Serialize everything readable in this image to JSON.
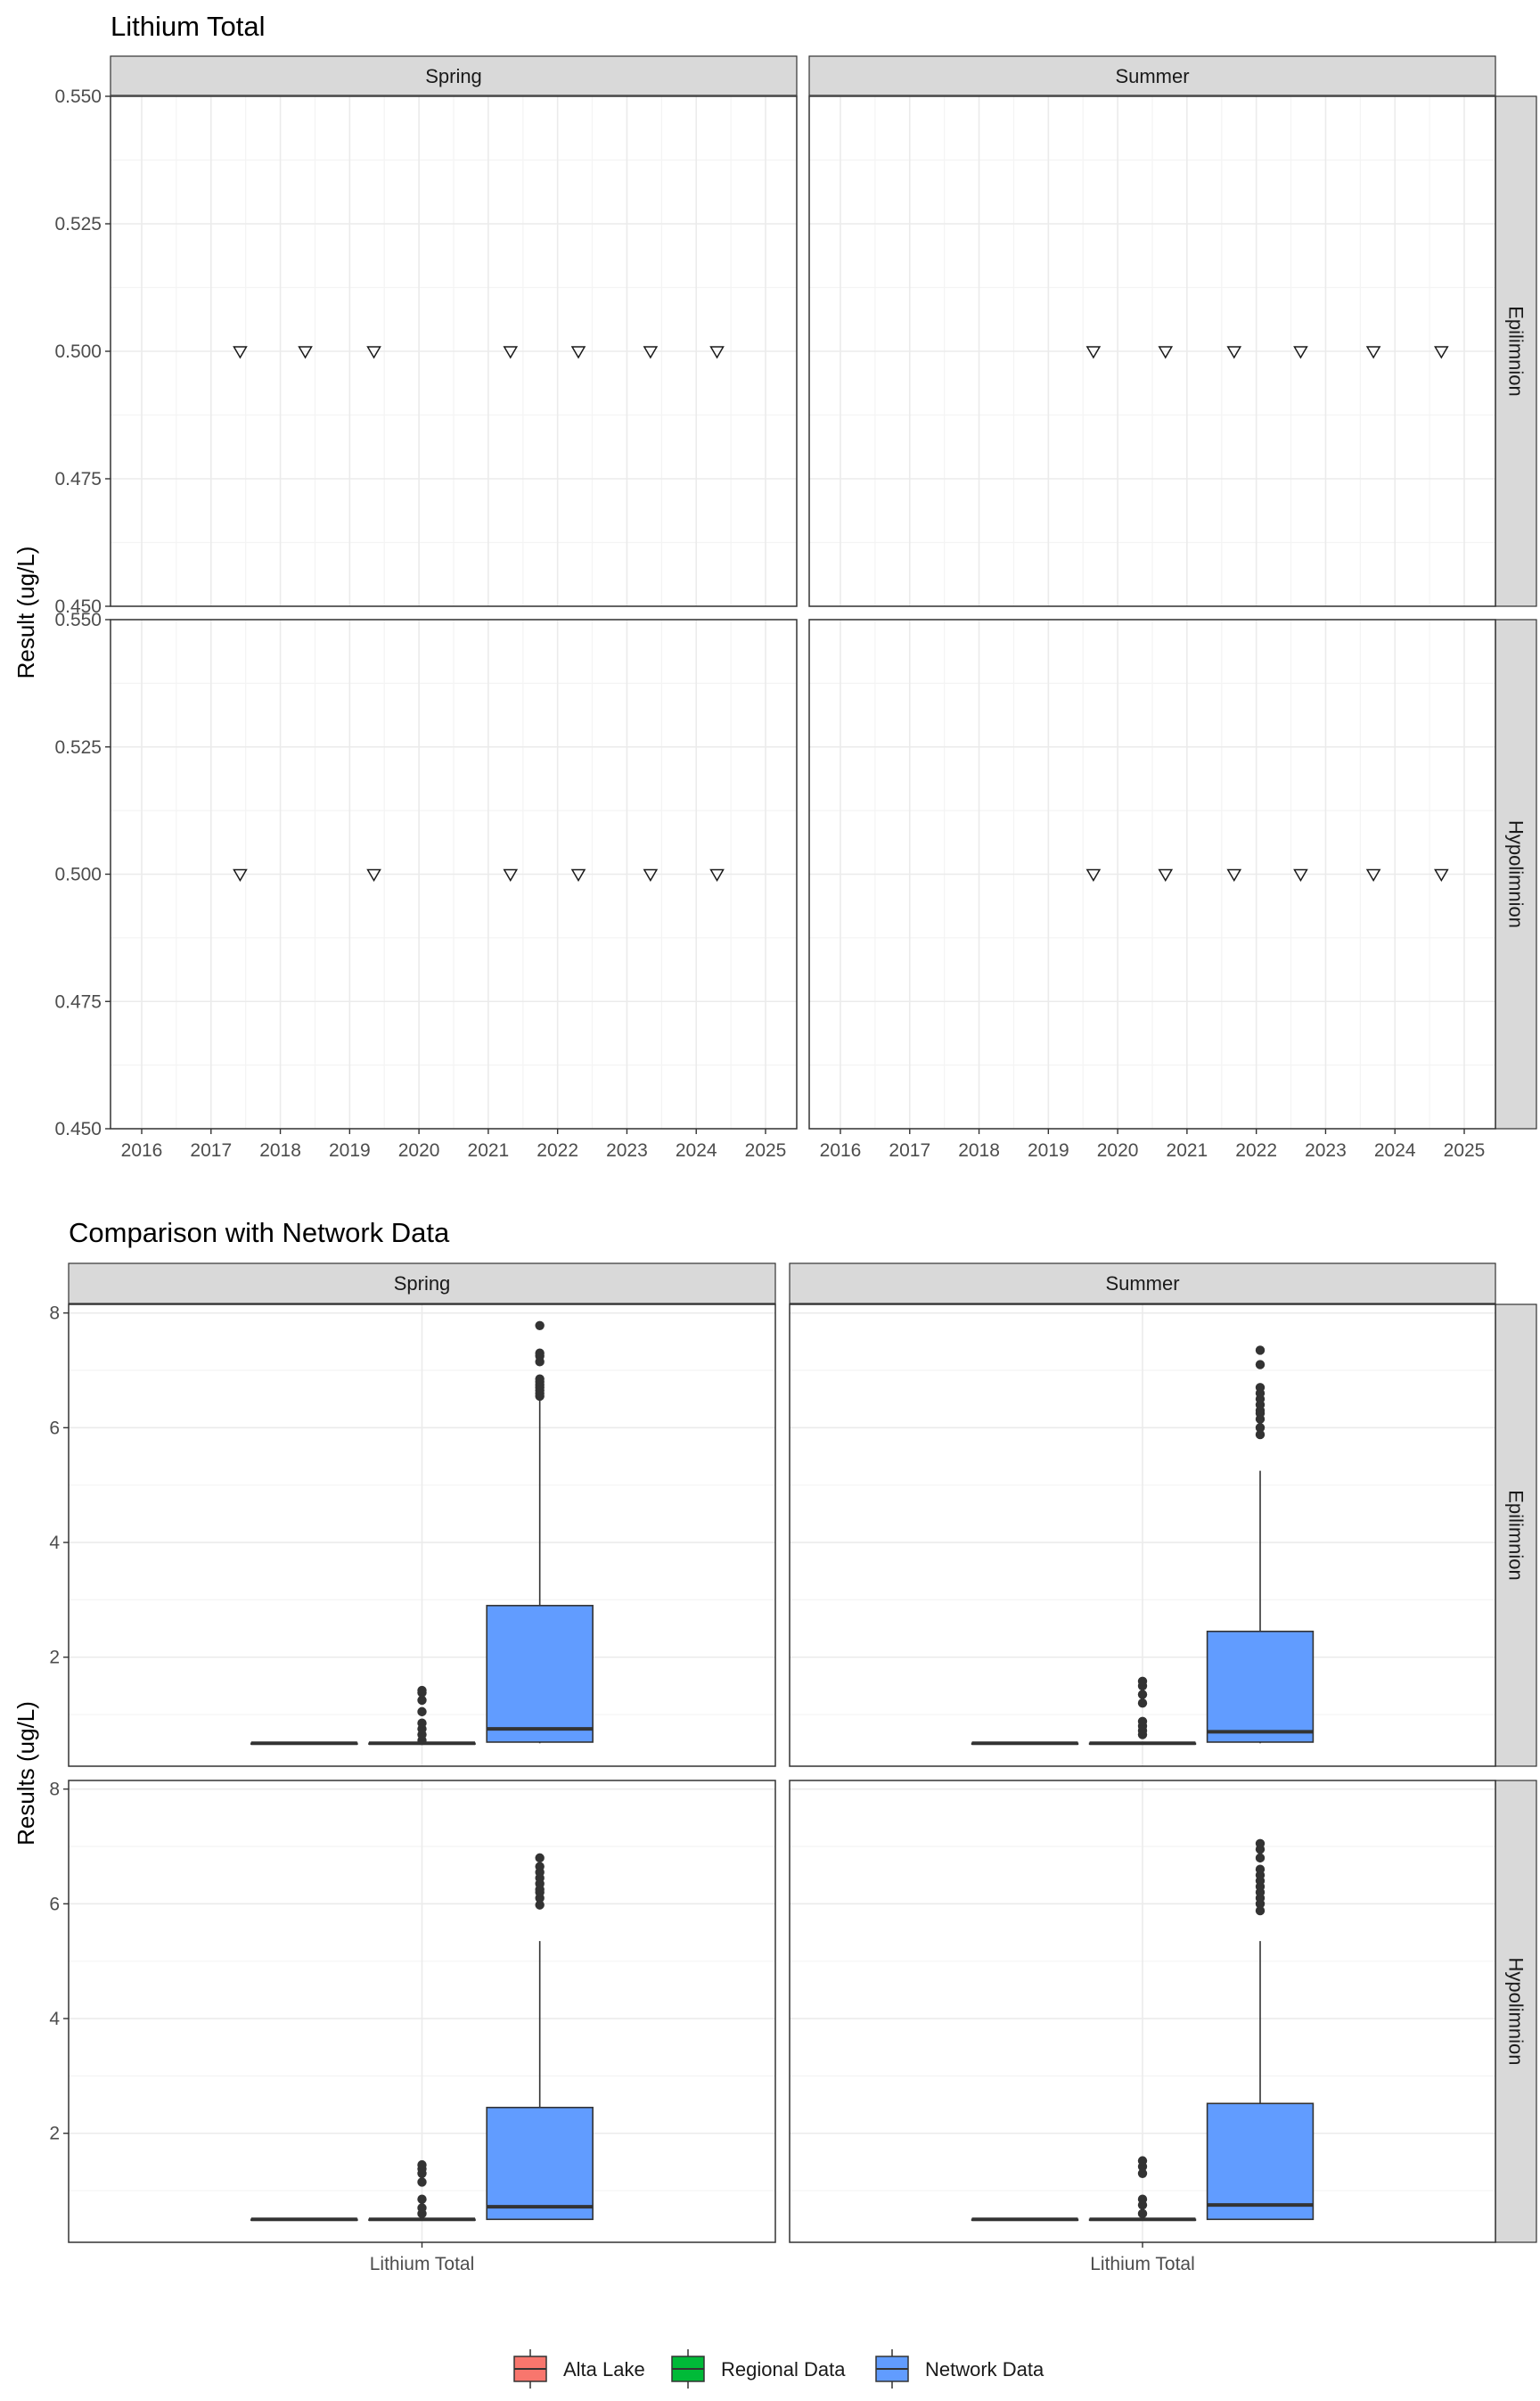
{
  "chart_data": [
    {
      "type": "scatter",
      "title": "Lithium Total",
      "ylabel": "Result (ug/L)",
      "xlabel": "",
      "facet_cols": [
        "Spring",
        "Summer"
      ],
      "facet_rows": [
        "Epilimnion",
        "Hypolimnion"
      ],
      "xlim": [
        2015.55,
        2025.45
      ],
      "ylim": [
        0.45,
        0.55
      ],
      "x_ticks": [
        2016,
        2017,
        2018,
        2019,
        2020,
        2021,
        2022,
        2023,
        2024,
        2025
      ],
      "x_tick_labels": [
        "2016",
        "2017",
        "2018",
        "2019",
        "2020",
        "2021",
        "2022",
        "2023",
        "2024",
        "2025"
      ],
      "y_ticks": [
        0.45,
        0.475,
        0.5,
        0.525,
        0.55
      ],
      "y_tick_labels": [
        "0.450",
        "0.475",
        "0.500",
        "0.525",
        "0.550"
      ],
      "marker": "open-down-triangle",
      "grid": true,
      "panels": [
        {
          "col": "Spring",
          "row": "Epilimnion",
          "x": [
            2017.42,
            2018.36,
            2019.35,
            2021.32,
            2022.3,
            2023.34,
            2024.3
          ],
          "y": [
            0.5,
            0.5,
            0.5,
            0.5,
            0.5,
            0.5,
            0.5
          ]
        },
        {
          "col": "Summer",
          "row": "Epilimnion",
          "x": [
            2019.65,
            2020.69,
            2021.68,
            2022.64,
            2023.69,
            2024.67
          ],
          "y": [
            0.5,
            0.5,
            0.5,
            0.5,
            0.5,
            0.5
          ]
        },
        {
          "col": "Spring",
          "row": "Hypolimnion",
          "x": [
            2017.42,
            2019.35,
            2021.32,
            2022.3,
            2023.34,
            2024.3
          ],
          "y": [
            0.5,
            0.5,
            0.5,
            0.5,
            0.5,
            0.5
          ]
        },
        {
          "col": "Summer",
          "row": "Hypolimnion",
          "x": [
            2019.65,
            2020.69,
            2021.68,
            2022.64,
            2023.69,
            2024.67
          ],
          "y": [
            0.5,
            0.5,
            0.5,
            0.5,
            0.5,
            0.5
          ]
        }
      ]
    },
    {
      "type": "box",
      "title": "Comparison with Network Data",
      "ylabel": "Results (ug/L)",
      "xlabel": "",
      "facet_cols": [
        "Spring",
        "Summer"
      ],
      "facet_rows": [
        "Epilimnion",
        "Hypolimnion"
      ],
      "categories": [
        "Lithium Total"
      ],
      "ylim": [
        0.1,
        8.15
      ],
      "y_ticks": [
        2,
        4,
        6,
        8
      ],
      "y_tick_labels": [
        "2",
        "4",
        "6",
        "8"
      ],
      "grid": true,
      "legend": {
        "position": "bottom",
        "entries": [
          "Alta Lake",
          "Regional Data",
          "Network Data"
        ]
      },
      "colors": {
        "Alta Lake": "#F8766D",
        "Regional Data": "#00BA38",
        "Network Data": "#619CFF"
      },
      "panels": [
        {
          "col": "Spring",
          "row": "Epilimnion",
          "series": [
            {
              "name": "Alta Lake",
              "q1": 0.5,
              "median": 0.5,
              "q3": 0.5,
              "whisker_low": 0.5,
              "whisker_high": 0.5,
              "outliers": []
            },
            {
              "name": "Regional Data",
              "q1": 0.5,
              "median": 0.5,
              "q3": 0.5,
              "whisker_low": 0.5,
              "whisker_high": 0.5,
              "outliers": [
                0.55,
                0.65,
                0.75,
                0.85,
                1.05,
                1.25,
                1.38,
                1.42
              ]
            },
            {
              "name": "Network Data",
              "q1": 0.52,
              "median": 0.75,
              "q3": 2.9,
              "whisker_low": 0.5,
              "whisker_high": 6.5,
              "outliers": [
                6.55,
                6.6,
                6.65,
                6.7,
                6.75,
                6.8,
                6.85,
                7.15,
                7.25,
                7.3,
                7.78
              ]
            }
          ]
        },
        {
          "col": "Summer",
          "row": "Epilimnion",
          "series": [
            {
              "name": "Alta Lake",
              "q1": 0.5,
              "median": 0.5,
              "q3": 0.5,
              "whisker_low": 0.5,
              "whisker_high": 0.5,
              "outliers": []
            },
            {
              "name": "Regional Data",
              "q1": 0.5,
              "median": 0.5,
              "q3": 0.5,
              "whisker_low": 0.5,
              "whisker_high": 0.5,
              "outliers": [
                0.65,
                0.72,
                0.8,
                0.88,
                1.2,
                1.35,
                1.5,
                1.58
              ]
            },
            {
              "name": "Network Data",
              "q1": 0.52,
              "median": 0.7,
              "q3": 2.45,
              "whisker_low": 0.5,
              "whisker_high": 5.25,
              "outliers": [
                5.88,
                6.0,
                6.15,
                6.25,
                6.3,
                6.4,
                6.5,
                6.6,
                6.7,
                7.1,
                7.35
              ]
            }
          ]
        },
        {
          "col": "Spring",
          "row": "Hypolimnion",
          "series": [
            {
              "name": "Alta Lake",
              "q1": 0.5,
              "median": 0.5,
              "q3": 0.5,
              "whisker_low": 0.5,
              "whisker_high": 0.5,
              "outliers": []
            },
            {
              "name": "Regional Data",
              "q1": 0.5,
              "median": 0.5,
              "q3": 0.5,
              "whisker_low": 0.5,
              "whisker_high": 0.5,
              "outliers": [
                0.6,
                0.7,
                0.85,
                1.15,
                1.3,
                1.38,
                1.45
              ]
            },
            {
              "name": "Network Data",
              "q1": 0.5,
              "median": 0.72,
              "q3": 2.45,
              "whisker_low": 0.5,
              "whisker_high": 5.35,
              "outliers": [
                5.98,
                6.1,
                6.2,
                6.25,
                6.35,
                6.45,
                6.55,
                6.65,
                6.8
              ]
            }
          ]
        },
        {
          "col": "Summer",
          "row": "Hypolimnion",
          "series": [
            {
              "name": "Alta Lake",
              "q1": 0.5,
              "median": 0.5,
              "q3": 0.5,
              "whisker_low": 0.5,
              "whisker_high": 0.5,
              "outliers": []
            },
            {
              "name": "Regional Data",
              "q1": 0.5,
              "median": 0.5,
              "q3": 0.5,
              "whisker_low": 0.5,
              "whisker_high": 0.5,
              "outliers": [
                0.6,
                0.75,
                0.85,
                1.3,
                1.42,
                1.52
              ]
            },
            {
              "name": "Network Data",
              "q1": 0.5,
              "median": 0.75,
              "q3": 2.52,
              "whisker_low": 0.5,
              "whisker_high": 5.35,
              "outliers": [
                5.88,
                6.0,
                6.1,
                6.2,
                6.3,
                6.4,
                6.5,
                6.6,
                6.8,
                6.95,
                7.05
              ]
            }
          ]
        }
      ]
    }
  ]
}
